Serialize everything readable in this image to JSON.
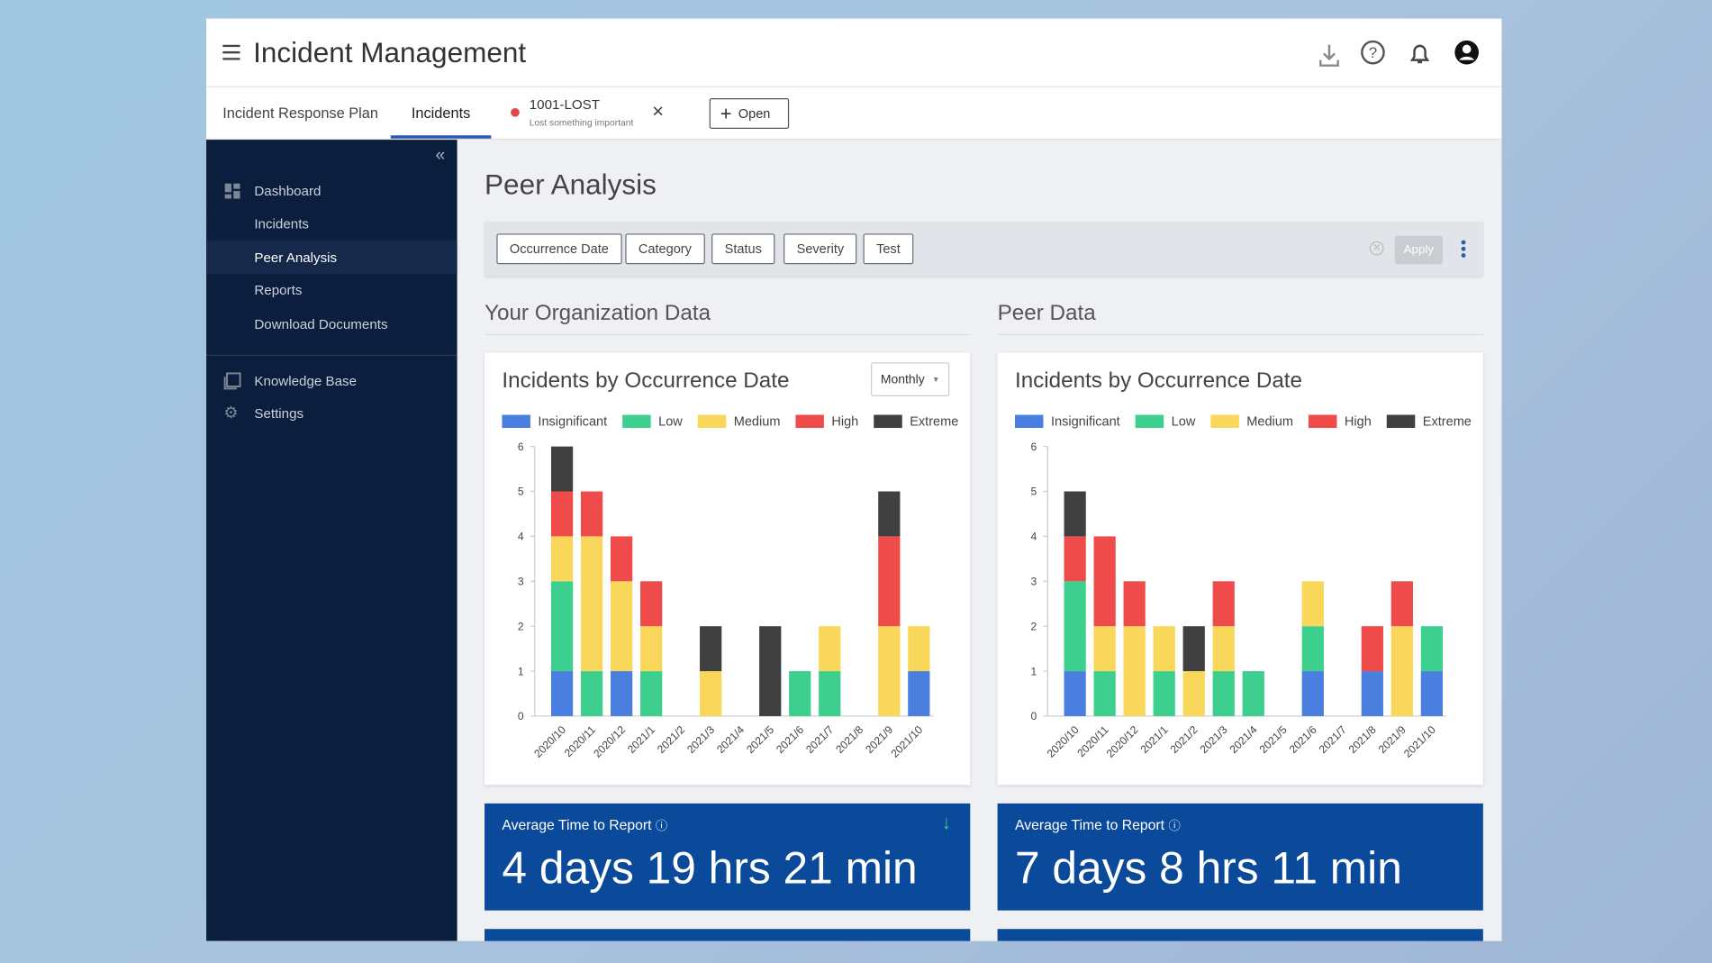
{
  "header": {
    "title": "Incident Management"
  },
  "tabs": [
    "Incident Response Plan",
    "Incidents"
  ],
  "incident_tab": {
    "id": "1001-LOST",
    "subtitle": "Lost something important"
  },
  "open_button": "Open",
  "sidebar": {
    "items": [
      "Dashboard",
      "Incidents",
      "Peer Analysis",
      "Reports",
      "Download Documents",
      "Knowledge Base",
      "Settings"
    ]
  },
  "page_title": "Peer Analysis",
  "filters": [
    "Occurrence Date",
    "Category",
    "Status",
    "Severity",
    "Test"
  ],
  "apply": "Apply",
  "sections": [
    "Your Organization Data",
    "Peer Data"
  ],
  "period_select": "Monthly",
  "chart_data": [
    {
      "type": "bar",
      "stacked": true,
      "title": "Incidents by Occurrence Date",
      "categories": [
        "2020/10",
        "2020/11",
        "2020/12",
        "2021/1",
        "2021/2",
        "2021/3",
        "2021/4",
        "2021/5",
        "2021/6",
        "2021/7",
        "2021/8",
        "2021/9",
        "2021/10"
      ],
      "series": [
        {
          "name": "Insignificant",
          "color": "#4a7fe0",
          "values": [
            1,
            0,
            1,
            0,
            0,
            0,
            0,
            0,
            0,
            0,
            0,
            0,
            1
          ]
        },
        {
          "name": "Low",
          "color": "#3dcf8e",
          "values": [
            2,
            1,
            0,
            1,
            0,
            0,
            0,
            0,
            1,
            1,
            0,
            0,
            0
          ]
        },
        {
          "name": "Medium",
          "color": "#f8d75a",
          "values": [
            1,
            3,
            2,
            1,
            0,
            1,
            0,
            0,
            0,
            1,
            0,
            2,
            1
          ]
        },
        {
          "name": "High",
          "color": "#ef4b4b",
          "values": [
            1,
            1,
            1,
            1,
            0,
            0,
            0,
            0,
            0,
            0,
            0,
            2,
            0
          ]
        },
        {
          "name": "Extreme",
          "color": "#404040",
          "values": [
            1,
            0,
            0,
            0,
            0,
            1,
            0,
            2,
            0,
            0,
            0,
            1,
            0
          ]
        }
      ],
      "ylim": [
        0,
        6
      ],
      "yticks": [
        0,
        1,
        2,
        3,
        4,
        5,
        6
      ]
    },
    {
      "type": "bar",
      "stacked": true,
      "title": "Incidents by Occurrence Date",
      "categories": [
        "2020/10",
        "2020/11",
        "2020/12",
        "2021/1",
        "2021/2",
        "2021/3",
        "2021/4",
        "2021/5",
        "2021/6",
        "2021/7",
        "2021/8",
        "2021/9",
        "2021/10"
      ],
      "series": [
        {
          "name": "Insignificant",
          "color": "#4a7fe0",
          "values": [
            1,
            0,
            0,
            0,
            0,
            0,
            0,
            0,
            1,
            0,
            1,
            0,
            1
          ]
        },
        {
          "name": "Low",
          "color": "#3dcf8e",
          "values": [
            2,
            1,
            0,
            1,
            0,
            1,
            1,
            0,
            1,
            0,
            0,
            0,
            1
          ]
        },
        {
          "name": "Medium",
          "color": "#f8d75a",
          "values": [
            0,
            1,
            2,
            1,
            1,
            1,
            0,
            0,
            1,
            0,
            0,
            2,
            0
          ]
        },
        {
          "name": "High",
          "color": "#ef4b4b",
          "values": [
            1,
            2,
            1,
            0,
            0,
            1,
            0,
            0,
            0,
            0,
            1,
            1,
            0
          ]
        },
        {
          "name": "Extreme",
          "color": "#404040",
          "values": [
            1,
            0,
            0,
            0,
            1,
            0,
            0,
            0,
            0,
            0,
            0,
            0,
            0
          ]
        }
      ],
      "ylim": [
        0,
        6
      ],
      "yticks": [
        0,
        1,
        2,
        3,
        4,
        5,
        6
      ]
    }
  ],
  "metrics": [
    {
      "label": "Average Time to Report",
      "value": "4 days 19 hrs 21 min"
    },
    {
      "label": "Average Time to Report",
      "value": "7 days 8 hrs 11 min"
    }
  ]
}
